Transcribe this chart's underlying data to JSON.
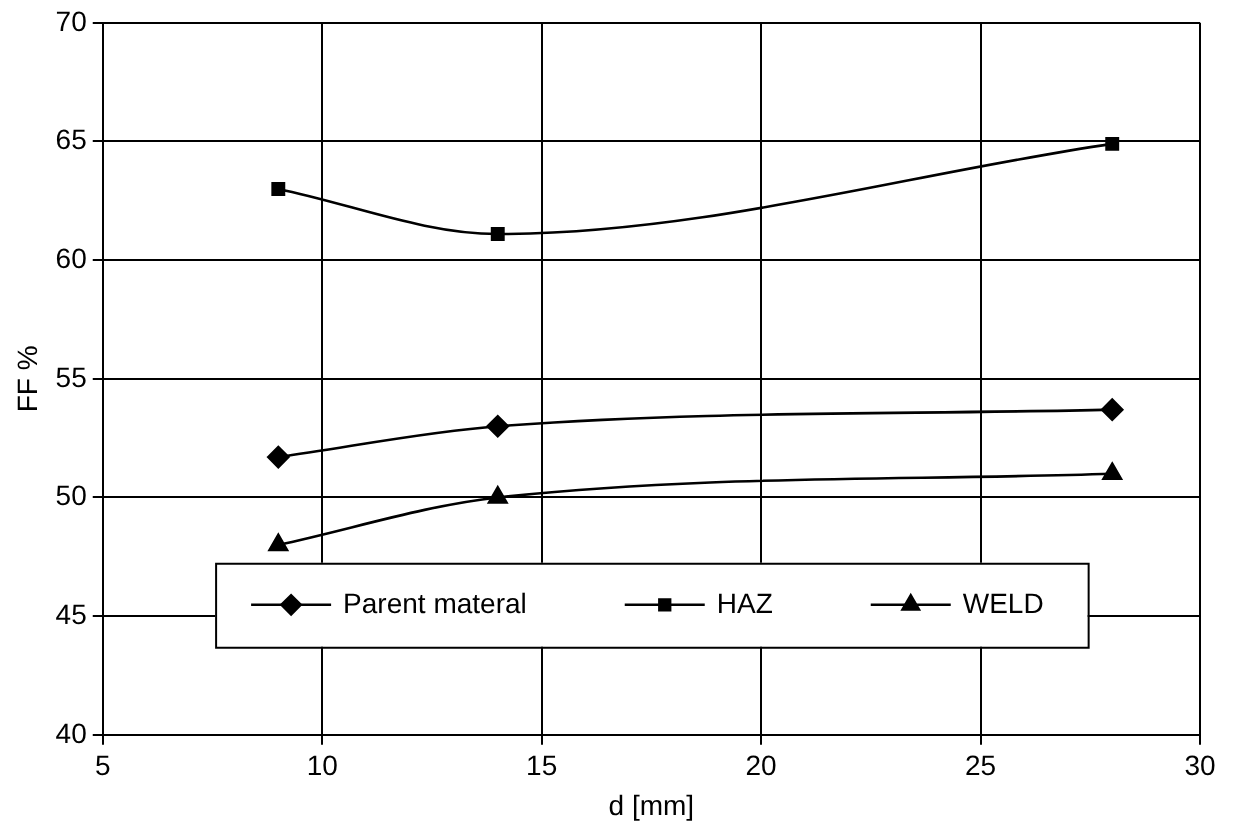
{
  "chart_data": {
    "type": "line",
    "xlabel": "d [mm]",
    "ylabel": "FF %",
    "xlim": [
      5,
      30
    ],
    "xticks": [
      5,
      10,
      15,
      20,
      25,
      30
    ],
    "ylim": [
      40,
      70
    ],
    "yticks": [
      40,
      45,
      50,
      55,
      60,
      65,
      70
    ],
    "grid": true,
    "legend": "bottom",
    "line_style": "solid",
    "x": [
      9,
      14,
      28
    ],
    "series": [
      {
        "name": "Parent materal",
        "color": "#000000",
        "marker": "diamond",
        "values": [
          51.7,
          53,
          53.7
        ]
      },
      {
        "name": "HAZ",
        "color": "#000000",
        "marker": "square",
        "values": [
          63,
          61.1,
          64.9
        ]
      },
      {
        "name": "WELD",
        "color": "#000000",
        "marker": "triangle",
        "values": [
          48,
          50,
          51
        ]
      }
    ]
  }
}
